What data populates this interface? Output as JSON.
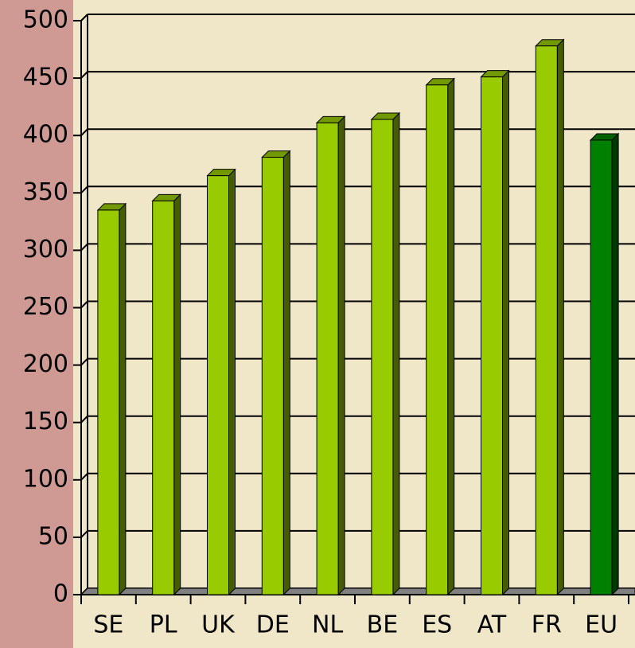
{
  "chart_data": {
    "type": "bar3d",
    "categories": [
      "SE",
      "PL",
      "UK",
      "DE",
      "NL",
      "BE",
      "ES",
      "AT",
      "FR",
      "EU"
    ],
    "values": [
      335,
      343,
      365,
      381,
      411,
      414,
      444,
      451,
      478,
      396
    ],
    "colors": [
      "#99cc00",
      "#99cc00",
      "#99cc00",
      "#99cc00",
      "#99cc00",
      "#99cc00",
      "#99cc00",
      "#99cc00",
      "#99cc00",
      "#008000"
    ],
    "ylim": [
      0,
      500
    ],
    "yticks": [
      0,
      50,
      100,
      150,
      200,
      250,
      300,
      350,
      400,
      450,
      500
    ],
    "grid": true
  }
}
